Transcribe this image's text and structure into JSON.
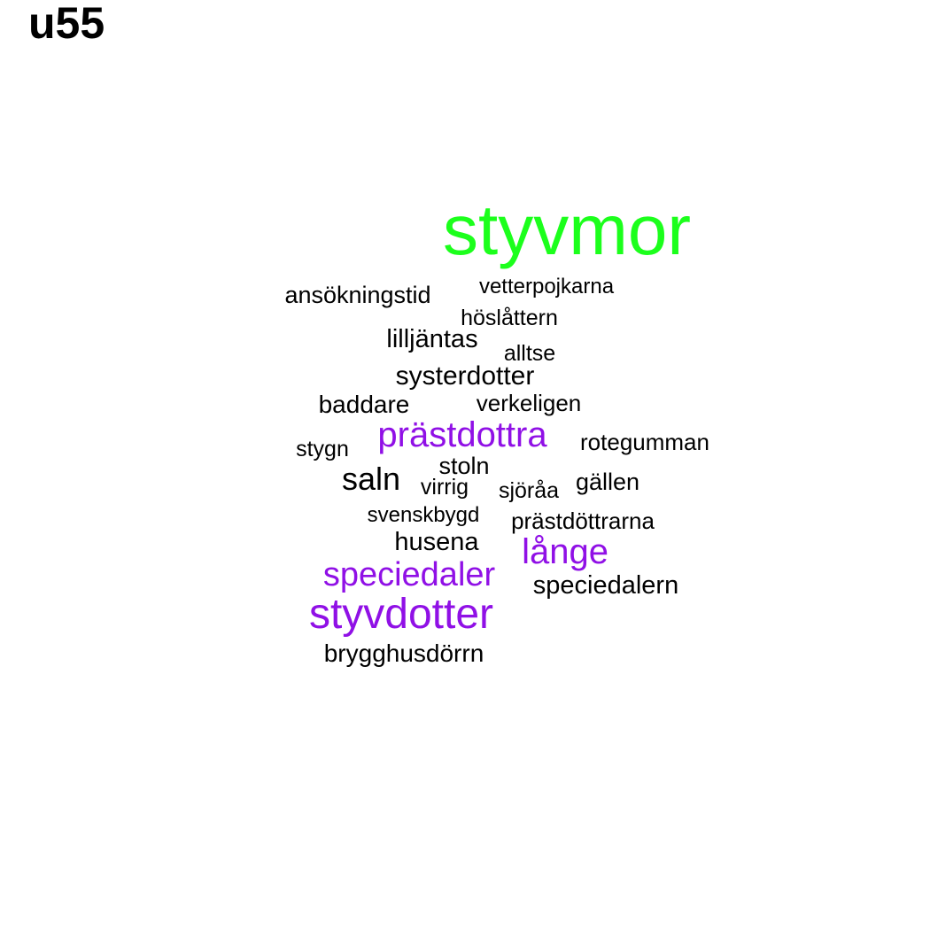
{
  "title": "u55",
  "colors": {
    "background": "#ffffff",
    "top_word": "#1cff1c",
    "highlight": "#9010e6",
    "normal": "#000000"
  },
  "words": [
    {
      "text": "styvmor",
      "style": "top_word"
    },
    {
      "text": "vetterpojkarna",
      "style": "normal"
    },
    {
      "text": "ansökningstid",
      "style": "normal"
    },
    {
      "text": "höslåttern",
      "style": "normal"
    },
    {
      "text": "lilljäntas",
      "style": "normal"
    },
    {
      "text": "alltse",
      "style": "normal"
    },
    {
      "text": "systerdotter",
      "style": "normal"
    },
    {
      "text": "baddare",
      "style": "normal"
    },
    {
      "text": "verkeligen",
      "style": "normal"
    },
    {
      "text": "prästdottra",
      "style": "highlight"
    },
    {
      "text": "stygn",
      "style": "normal"
    },
    {
      "text": "rotegumman",
      "style": "normal"
    },
    {
      "text": "stoln",
      "style": "normal"
    },
    {
      "text": "saln",
      "style": "normal"
    },
    {
      "text": "virrig",
      "style": "normal"
    },
    {
      "text": "sjöråa",
      "style": "normal"
    },
    {
      "text": "gällen",
      "style": "normal"
    },
    {
      "text": "svenskbygd",
      "style": "normal"
    },
    {
      "text": "prästdöttrarna",
      "style": "normal"
    },
    {
      "text": "husena",
      "style": "normal"
    },
    {
      "text": "långe",
      "style": "highlight"
    },
    {
      "text": "speciedaler",
      "style": "highlight"
    },
    {
      "text": "speciedalern",
      "style": "normal"
    },
    {
      "text": "styvdotter",
      "style": "highlight"
    },
    {
      "text": "brygghusdörrn",
      "style": "normal"
    }
  ]
}
